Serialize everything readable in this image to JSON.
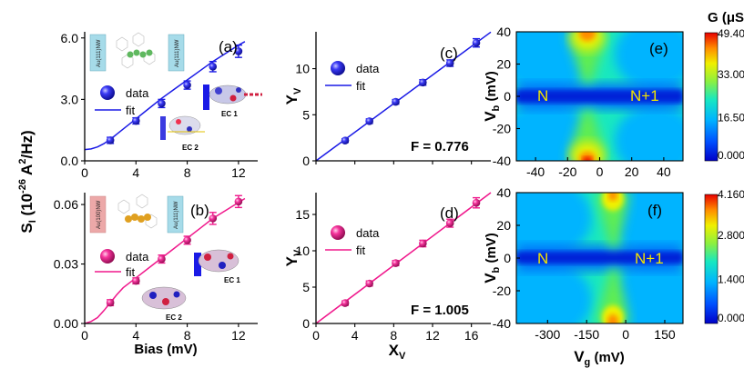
{
  "chart_data": [
    {
      "id": "a",
      "type": "scatter",
      "panel_label": "(a)",
      "color": "#1a1ae6",
      "xlabel": "Bias (mV)",
      "ylabel": "S_I (10^-26 A^2/Hz)",
      "ylabel_parts": {
        "main": "S",
        "sub": "I",
        "unit_open": " (10",
        "exp1": "-26",
        "mid": " A",
        "exp2": "2",
        "close": "/Hz)"
      },
      "xlim": [
        0,
        13.5
      ],
      "ylim": [
        0,
        6.3
      ],
      "xticks": [
        0,
        4,
        8,
        12
      ],
      "xtick_labels": [
        "0",
        "4",
        "8",
        "12"
      ],
      "yticks": [
        0,
        3,
        6
      ],
      "ytick_labels": [
        "0.0",
        "3.0",
        "6.0"
      ],
      "x": [
        2,
        4,
        6,
        8,
        10,
        12
      ],
      "y": [
        1.0,
        1.95,
        2.8,
        3.7,
        4.6,
        5.35
      ],
      "yerr": [
        0.15,
        0.15,
        0.2,
        0.2,
        0.25,
        0.3
      ],
      "fit": {
        "x": [
          0,
          0.5,
          1,
          1.5,
          2,
          2.5,
          3,
          3.5,
          4,
          5,
          6,
          7,
          8,
          9,
          10,
          11,
          12,
          12.5
        ],
        "y": [
          0.55,
          0.58,
          0.68,
          0.84,
          1.05,
          1.3,
          1.55,
          1.8,
          2.05,
          2.55,
          3.05,
          3.5,
          3.95,
          4.4,
          4.85,
          5.25,
          5.65,
          5.82
        ]
      },
      "legend": [
        "data",
        "fit"
      ],
      "insets": {
        "electrode_left": "Au(111)NW",
        "electrode_right": "Au(111)NW",
        "ec1": "EC 1",
        "ec2": "EC 2"
      }
    },
    {
      "id": "b",
      "type": "scatter",
      "panel_label": "(b)",
      "color": "#f0188c",
      "xlabel": "Bias (mV)",
      "xlim": [
        0,
        13.5
      ],
      "ylim": [
        0,
        0.066
      ],
      "xticks": [
        0,
        4,
        8,
        12
      ],
      "xtick_labels": [
        "0",
        "4",
        "8",
        "12"
      ],
      "yticks": [
        0,
        0.03,
        0.06
      ],
      "ytick_labels": [
        "0.00",
        "0.03",
        "0.06"
      ],
      "x": [
        2,
        4,
        6,
        8,
        10,
        12
      ],
      "y": [
        0.0105,
        0.0215,
        0.0325,
        0.042,
        0.053,
        0.0615
      ],
      "yerr": [
        0.0015,
        0.0015,
        0.002,
        0.002,
        0.003,
        0.003
      ],
      "fit": {
        "x": [
          0,
          0.5,
          1,
          1.5,
          2,
          2.5,
          3,
          4,
          5,
          6,
          7,
          8,
          9,
          10,
          11,
          12,
          12.5
        ],
        "y": [
          0.0,
          0.001,
          0.003,
          0.0065,
          0.0105,
          0.0145,
          0.018,
          0.023,
          0.028,
          0.033,
          0.038,
          0.043,
          0.048,
          0.053,
          0.057,
          0.061,
          0.063
        ]
      },
      "legend": [
        "data",
        "fit"
      ],
      "insets": {
        "electrode_left": "Au(100)NW",
        "electrode_right": "Au(111)NW",
        "ec1": "EC 1",
        "ec2": "EC 2"
      }
    },
    {
      "id": "c",
      "type": "scatter",
      "panel_label": "(c)",
      "color": "#1a1ae6",
      "ylabel": "Y",
      "ylabel_sub": "V",
      "xlim": [
        0,
        18
      ],
      "ylim": [
        0,
        14
      ],
      "xticks": [
        0,
        4,
        8,
        12,
        16
      ],
      "yticks": [
        0,
        5,
        10
      ],
      "ytick_labels": [
        "0",
        "5",
        "10"
      ],
      "x": [
        3,
        5.5,
        8.2,
        11,
        13.8,
        16.5
      ],
      "y": [
        2.2,
        4.3,
        6.4,
        8.5,
        10.6,
        12.8
      ],
      "yerr": [
        0.2,
        0.25,
        0.25,
        0.3,
        0.35,
        0.45
      ],
      "fit": {
        "x": [
          0,
          18
        ],
        "y": [
          0,
          13.97
        ]
      },
      "legend": [
        "data",
        "fit"
      ],
      "annotation": "F = 0.776"
    },
    {
      "id": "d",
      "type": "scatter",
      "panel_label": "(d)",
      "color": "#f0188c",
      "xlabel": "X",
      "xlabel_sub": "V",
      "ylabel": "Y",
      "ylabel_sub": "V",
      "xlim": [
        0,
        18
      ],
      "ylim": [
        0,
        18
      ],
      "xticks": [
        0,
        4,
        8,
        12,
        16
      ],
      "xtick_labels": [
        "0",
        "4",
        "8",
        "12",
        "16"
      ],
      "yticks": [
        0,
        5,
        10,
        15
      ],
      "ytick_labels": [
        "0",
        "5",
        "10",
        "15"
      ],
      "x": [
        3,
        5.5,
        8.2,
        11,
        13.8,
        16.5
      ],
      "y": [
        2.8,
        5.5,
        8.3,
        11.0,
        13.8,
        16.6
      ],
      "yerr": [
        0.3,
        0.35,
        0.35,
        0.45,
        0.55,
        0.7
      ],
      "fit": {
        "x": [
          0,
          18
        ],
        "y": [
          0,
          18.09
        ]
      },
      "legend": [
        "data",
        "fit"
      ],
      "annotation": "F = 1.005"
    },
    {
      "id": "e",
      "type": "heatmap",
      "panel_label": "(e)",
      "ylabel": "V",
      "ylabel_sub": "b",
      "ylabel_unit": " (mV)",
      "xlim": [
        -52,
        52
      ],
      "ylim": [
        -40,
        40
      ],
      "xticks": [
        -40,
        -20,
        0,
        20,
        40
      ],
      "xtick_labels": [
        "-40",
        "-20",
        "0",
        "20",
        "40"
      ],
      "yticks": [
        -40,
        -20,
        0,
        20,
        40
      ],
      "ytick_labels": [
        "-40",
        "-20",
        "0",
        "20",
        "40"
      ],
      "center_x": -8,
      "regions": [
        "N",
        "N+1"
      ],
      "colorbar": {
        "title": "G (μS)",
        "labels": [
          "49.40",
          "33.00",
          "16.50",
          "0.000"
        ],
        "range": [
          0,
          49.4
        ]
      }
    },
    {
      "id": "f",
      "type": "heatmap",
      "panel_label": "(f)",
      "xlabel": "V",
      "xlabel_sub": "g",
      "xlabel_unit": " (mV)",
      "ylabel": "V",
      "ylabel_sub": "b",
      "ylabel_unit": " (mV)",
      "xlim": [
        -420,
        220
      ],
      "ylim": [
        -40,
        40
      ],
      "xticks": [
        -300,
        -150,
        0,
        150
      ],
      "xtick_labels": [
        "-300",
        "-150",
        "0",
        "150"
      ],
      "yticks": [
        -40,
        -20,
        0,
        20,
        40
      ],
      "ytick_labels": [
        "-40",
        "-20",
        "0",
        "20",
        "40"
      ],
      "center_x": -95,
      "regions": [
        "N",
        "N+1"
      ],
      "colorbar": {
        "labels": [
          "4.160",
          "2.800",
          "1.400",
          "0.000"
        ],
        "range": [
          0,
          4.16
        ]
      }
    }
  ],
  "colors": {
    "blue": "#1a1ae6",
    "pink": "#f0188c",
    "region_text": "#f2e500"
  }
}
